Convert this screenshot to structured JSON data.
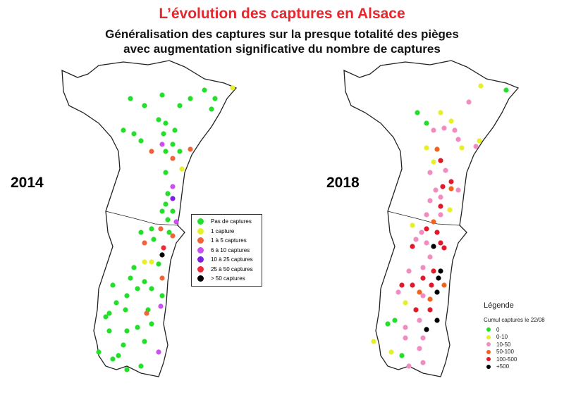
{
  "title": "L’évolution des captures en Alsace",
  "subtitle_line1": "Généralisation des captures sur la presque totalité des pièges",
  "subtitle_line2": "avec augmentation significative du nombre de captures",
  "map_2014": {
    "year": "2014",
    "legend": [
      {
        "label": "Pas de captures",
        "color": "#22e02a"
      },
      {
        "label": "1  capture",
        "color": "#e6f02a"
      },
      {
        "label": "1 à 5 captures",
        "color": "#f2643a"
      },
      {
        "label": "6 à 10 captures",
        "color": "#cc4ff0"
      },
      {
        "label": "10 à 25 captures",
        "color": "#7a22e0"
      },
      {
        "label": "25 à 50 captures",
        "color": "#ef2a3a"
      },
      {
        "label": "> 50 captures",
        "color": "#000000"
      }
    ]
  },
  "map_2018": {
    "year": "2018",
    "legend_title": "Légende",
    "legend_subtitle": "Cumul captures le 22/08",
    "legend": [
      {
        "label": "0",
        "color": "#22e02a"
      },
      {
        "label": "0-10",
        "color": "#e6f02a"
      },
      {
        "label": "10-50",
        "color": "#f08cc0"
      },
      {
        "label": "50-100",
        "color": "#f2641e"
      },
      {
        "label": "100-500",
        "color": "#e01a2a"
      },
      {
        "label": "+500",
        "color": "#000000"
      }
    ]
  }
}
